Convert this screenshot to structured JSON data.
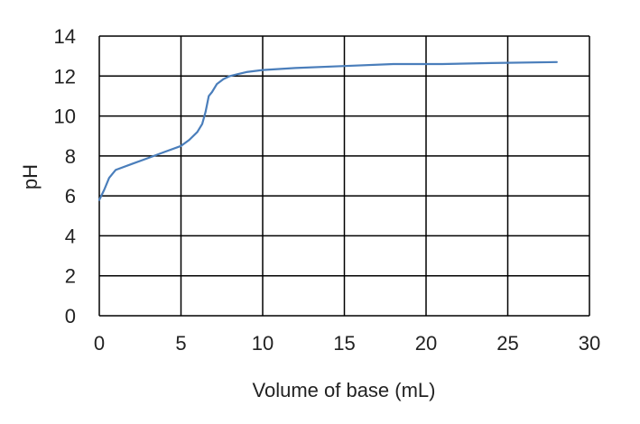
{
  "chart_data": {
    "type": "line",
    "title": "",
    "xlabel": "Volume of base (mL)",
    "ylabel": "pH",
    "xlim": [
      0,
      30
    ],
    "ylim": [
      0,
      14
    ],
    "xticks": [
      0,
      5,
      10,
      15,
      20,
      25,
      30
    ],
    "yticks": [
      0,
      2,
      4,
      6,
      8,
      10,
      12,
      14
    ],
    "grid": true,
    "legend": "none",
    "series": [
      {
        "color": "#4a7ebb",
        "x": [
          0,
          0.3,
          0.6,
          1,
          2,
          3,
          4,
          5,
          5.5,
          6,
          6.3,
          6.5,
          6.7,
          6.9,
          7.2,
          7.6,
          8,
          8.5,
          9,
          10,
          12,
          15,
          18,
          21,
          24,
          28
        ],
        "y": [
          5.8,
          6.3,
          6.9,
          7.3,
          7.6,
          7.9,
          8.2,
          8.5,
          8.8,
          9.2,
          9.6,
          10.2,
          11.0,
          11.2,
          11.6,
          11.85,
          12.0,
          12.1,
          12.2,
          12.3,
          12.4,
          12.5,
          12.6,
          12.6,
          12.65,
          12.7
        ]
      }
    ]
  }
}
